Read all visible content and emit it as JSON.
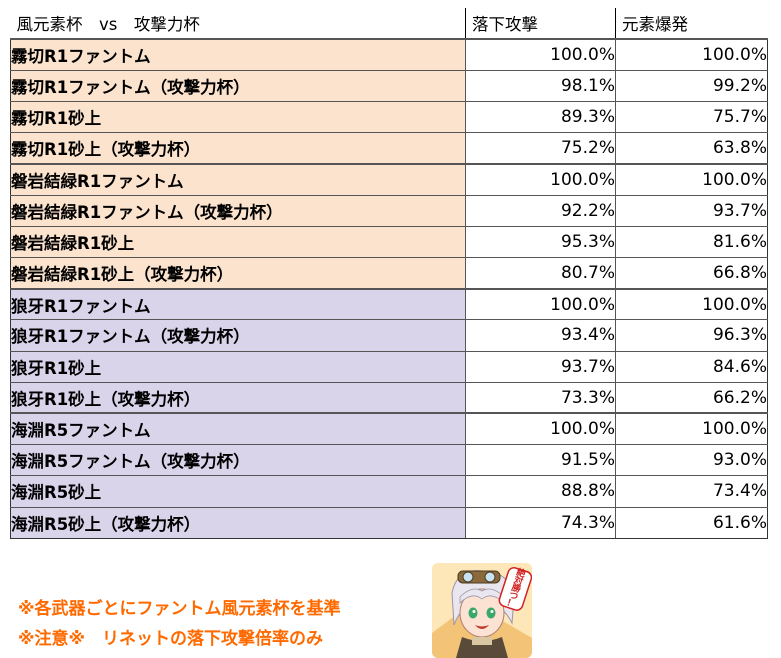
{
  "header": {
    "col0": "風元素杯　vs　攻撃力杯",
    "col1": "落下攻撃",
    "col2": "元素爆発"
  },
  "rows": [
    {
      "name": "霧切R1ファントム",
      "a": "100.0%",
      "b": "100.0%",
      "color": "#fbe3ce"
    },
    {
      "name": "霧切R1ファントム（攻撃力杯）",
      "a": "98.1%",
      "b": "99.2%",
      "color": "#fbe3ce"
    },
    {
      "name": "霧切R1砂上",
      "a": "89.3%",
      "b": "75.7%",
      "color": "#fbe3ce"
    },
    {
      "name": "霧切R1砂上（攻撃力杯）",
      "a": "75.2%",
      "b": "63.8%",
      "color": "#fbe3ce"
    },
    {
      "name": "磐岩結緑R1ファントム",
      "a": "100.0%",
      "b": "100.0%",
      "color": "#fbe3ce"
    },
    {
      "name": "磐岩結緑R1ファントム（攻撃力杯）",
      "a": "92.2%",
      "b": "93.7%",
      "color": "#fbe3ce"
    },
    {
      "name": "磐岩結緑R1砂上",
      "a": "95.3%",
      "b": "81.6%",
      "color": "#fbe3ce"
    },
    {
      "name": "磐岩結緑R1砂上（攻撃力杯）",
      "a": "80.7%",
      "b": "66.8%",
      "color": "#fbe3ce"
    },
    {
      "name": "狼牙R1ファントム",
      "a": "100.0%",
      "b": "100.0%",
      "color": "#dad4eb"
    },
    {
      "name": "狼牙R1ファントム（攻撃力杯）",
      "a": "93.4%",
      "b": "96.3%",
      "color": "#dad4eb"
    },
    {
      "name": "狼牙R1砂上",
      "a": "93.7%",
      "b": "84.6%",
      "color": "#dad4eb"
    },
    {
      "name": "狼牙R1砂上（攻撃力杯）",
      "a": "73.3%",
      "b": "66.2%",
      "color": "#dad4eb"
    },
    {
      "name": "海淵R5ファントム",
      "a": "100.0%",
      "b": "100.0%",
      "color": "#dad4eb"
    },
    {
      "name": "海淵R5ファントム（攻撃力杯）",
      "a": "91.5%",
      "b": "93.0%",
      "color": "#dad4eb"
    },
    {
      "name": "海淵R5砂上",
      "a": "88.8%",
      "b": "73.4%",
      "color": "#dad4eb"
    },
    {
      "name": "海淵R5砂上（攻撃力杯）",
      "a": "74.3%",
      "b": "61.6%",
      "color": "#dad4eb"
    }
  ],
  "notes": {
    "line1": "※各武器ごとにファントム風元素杯を基準",
    "line2": "※注意※　リネットの落下攻撃倍率のみ"
  },
  "sticker": {
    "text": "絶対勝つ！"
  },
  "colors": {
    "note_orange": "#ff6a00",
    "peach": "#fbe3ce",
    "lavender": "#dad4eb"
  }
}
